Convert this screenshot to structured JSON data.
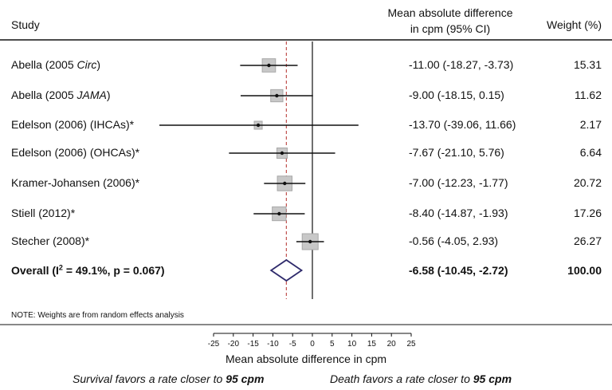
{
  "header": {
    "study": "Study",
    "effect_line1": "Mean absolute difference",
    "effect_line2": "in cpm (95% CI)",
    "weight": "Weight (%)"
  },
  "rows": [
    {
      "label_pre": "Abella (2005 ",
      "label_it": "Circ",
      "label_post": ")",
      "ci_text": "-11.00 (-18.27, -3.73)",
      "weight_text": "15.31"
    },
    {
      "label_pre": "Abella (2005 ",
      "label_it": "JAMA",
      "label_post": ")",
      "ci_text": "-9.00 (-18.15, 0.15)",
      "weight_text": "11.62"
    },
    {
      "label_pre": "Edelson (2006) (IHCAs)*",
      "label_it": "",
      "label_post": "",
      "ci_text": "-13.70 (-39.06, 11.66)",
      "weight_text": "2.17"
    },
    {
      "label_pre": "Edelson (2006) (OHCAs)*",
      "label_it": "",
      "label_post": "",
      "ci_text": "-7.67 (-21.10, 5.76)",
      "weight_text": "6.64"
    },
    {
      "label_pre": "Kramer-Johansen (2006)*",
      "label_it": "",
      "label_post": "",
      "ci_text": "-7.00 (-12.23, -1.77)",
      "weight_text": "20.72"
    },
    {
      "label_pre": "Stiell (2012)*",
      "label_it": "",
      "label_post": "",
      "ci_text": "-8.40 (-14.87, -1.93)",
      "weight_text": "17.26"
    },
    {
      "label_pre": "Stecher (2008)*",
      "label_it": "",
      "label_post": "",
      "ci_text": "-0.56 (-4.05, 2.93)",
      "weight_text": "26.27"
    }
  ],
  "overall": {
    "label_main": "Overall  (I",
    "label_sup": "2",
    "label_rest": " = 49.1%, p = 0.067)",
    "ci_text": "-6.58 (-10.45, -2.72)",
    "weight_text": "100.00"
  },
  "note": "NOTE: Weights are from random effects analysis",
  "x_axis_title": "Mean absolute difference in cpm",
  "favors_left": {
    "text": "Survival favors a rate closer to ",
    "bold": "95 cpm"
  },
  "favors_right": {
    "text": "Death favors a rate closer to ",
    "bold": "95 cpm"
  },
  "colors": {
    "box_fill": "#c8c8c8",
    "diamond_stroke": "#2e2a6b",
    "pooled_line": "#c0504d",
    "line": "#111111"
  },
  "chart_data": {
    "type": "forest",
    "xlabel": "Mean absolute difference in cpm",
    "xlim": [
      -25,
      25
    ],
    "xticks": [
      -25,
      -20,
      -15,
      -10,
      -5,
      0,
      5,
      10,
      15,
      20,
      25
    ],
    "studies": [
      {
        "name": "Abella (2005 Circ)",
        "estimate": -11.0,
        "lower": -18.27,
        "upper": -3.73,
        "weight": 15.31
      },
      {
        "name": "Abella (2005 JAMA)",
        "estimate": -9.0,
        "lower": -18.15,
        "upper": 0.15,
        "weight": 11.62
      },
      {
        "name": "Edelson (2006) (IHCAs)*",
        "estimate": -13.7,
        "lower": -39.06,
        "upper": 11.66,
        "weight": 2.17
      },
      {
        "name": "Edelson (2006) (OHCAs)*",
        "estimate": -7.67,
        "lower": -21.1,
        "upper": 5.76,
        "weight": 6.64
      },
      {
        "name": "Kramer-Johansen (2006)*",
        "estimate": -7.0,
        "lower": -12.23,
        "upper": -1.77,
        "weight": 20.72
      },
      {
        "name": "Stiell (2012)*",
        "estimate": -8.4,
        "lower": -14.87,
        "upper": -1.93,
        "weight": 17.26
      },
      {
        "name": "Stecher (2008)*",
        "estimate": -0.56,
        "lower": -4.05,
        "upper": 2.93,
        "weight": 26.27
      }
    ],
    "overall": {
      "estimate": -6.58,
      "lower": -10.45,
      "upper": -2.72,
      "weight": 100.0,
      "i2": 49.1,
      "p": 0.067
    }
  }
}
